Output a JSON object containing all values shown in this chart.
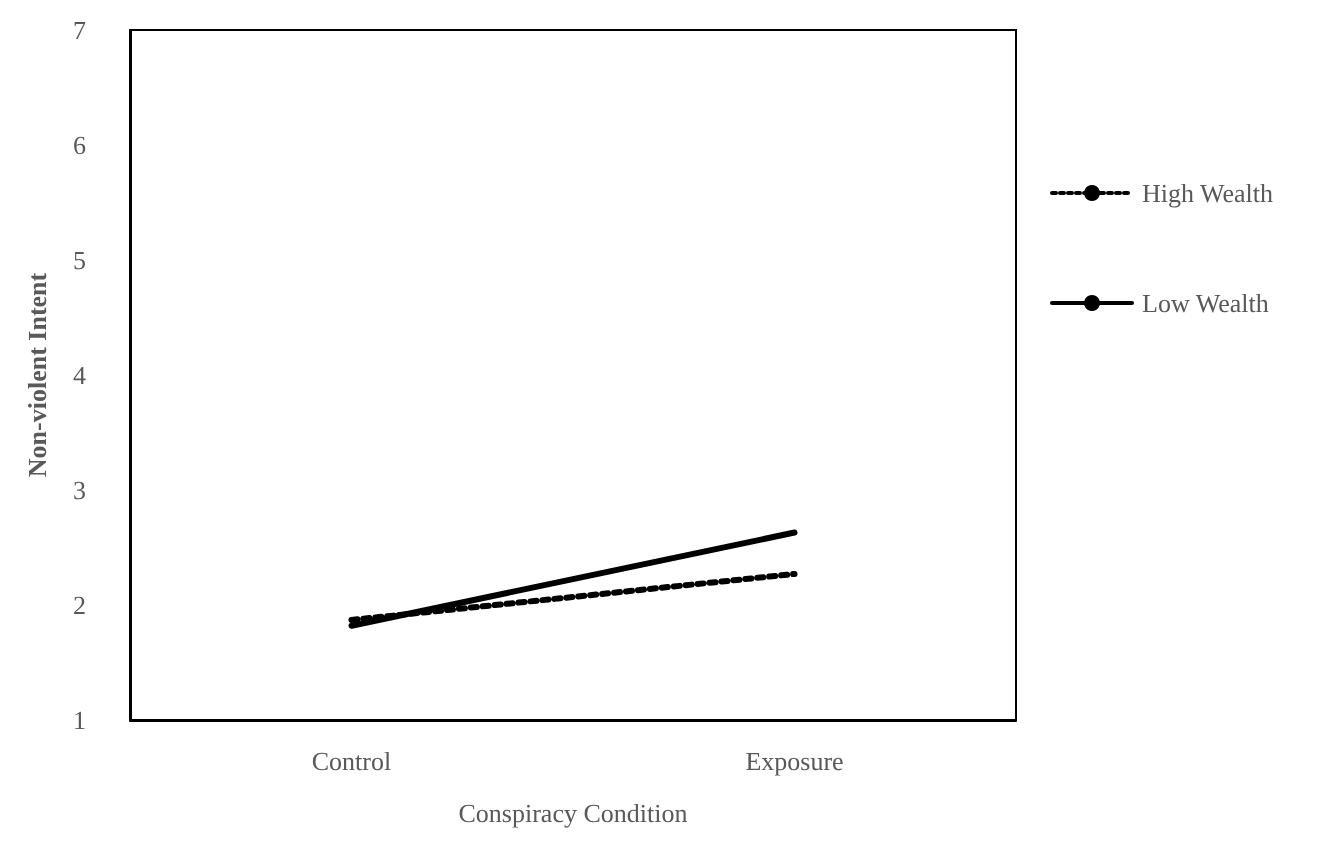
{
  "chart_data": {
    "type": "line",
    "xlabel": "Conspiracy Condition",
    "ylabel": "Non-violent Intent",
    "categories": [
      "Control",
      "Exposure"
    ],
    "series": [
      {
        "name": "High Wealth",
        "color": "#000000",
        "line_style": "dotted",
        "values": [
          1.87,
          2.27
        ]
      },
      {
        "name": "Low Wealth",
        "color": "#000000",
        "line_style": "solid",
        "values": [
          1.82,
          2.63
        ]
      }
    ],
    "ylim": [
      1,
      7
    ],
    "yticks": [
      1,
      2,
      3,
      4,
      5,
      6,
      7
    ],
    "grid": false,
    "legend": "right",
    "marker": "none"
  }
}
